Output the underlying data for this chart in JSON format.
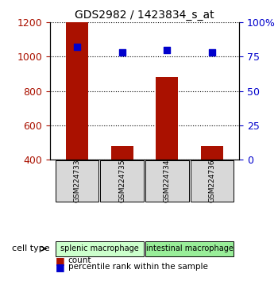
{
  "title": "GDS2982 / 1423834_s_at",
  "samples": [
    "GSM224733",
    "GSM224735",
    "GSM224734",
    "GSM224736"
  ],
  "counts": [
    1200,
    480,
    880,
    478
  ],
  "percentile_ranks": [
    82,
    78,
    80,
    78
  ],
  "ylim_left": [
    400,
    1200
  ],
  "yticks_left": [
    400,
    600,
    800,
    1000,
    1200
  ],
  "ylim_right": [
    0,
    100
  ],
  "yticks_right": [
    0,
    25,
    50,
    75,
    100
  ],
  "cell_types": [
    {
      "label": "splenic macrophage",
      "samples": [
        0,
        1
      ],
      "color": "#ccffcc"
    },
    {
      "label": "intestinal macrophage",
      "samples": [
        2,
        3
      ],
      "color": "#99ee99"
    }
  ],
  "bar_color": "#aa1100",
  "dot_color": "#0000cc",
  "bar_width": 0.5,
  "grid_color": "black",
  "background_color": "#f0f0f0",
  "label_count": "count",
  "label_percentile": "percentile rank within the sample",
  "cell_type_label": "cell type"
}
